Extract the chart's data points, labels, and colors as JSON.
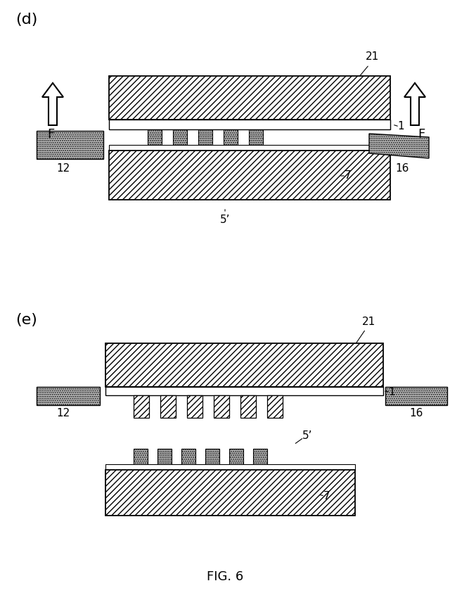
{
  "bg_color": "#ffffff",
  "label_d": "(d)",
  "label_e": "(e)",
  "fig_label": "FIG. 6"
}
